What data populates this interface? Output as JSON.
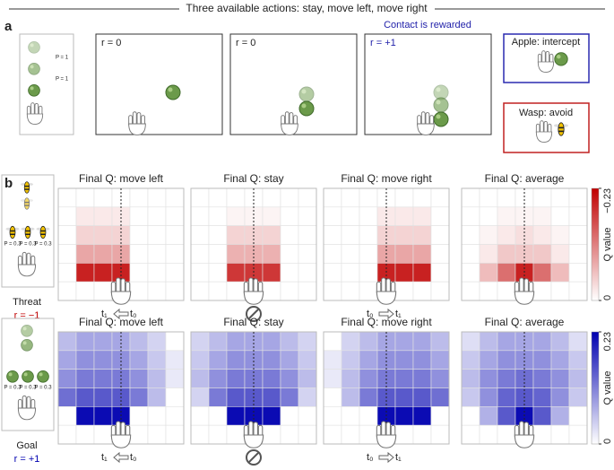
{
  "panel_a": {
    "label": "a",
    "title": "Three available actions: stay, move left, move right",
    "legend_probs": [
      "P = 1",
      "P = 1"
    ],
    "frames": [
      {
        "reward": "r = 0"
      },
      {
        "reward": "r = 0"
      },
      {
        "reward": "r = +1"
      }
    ],
    "note": "Contact is rewarded",
    "boxes": [
      "Apple: intercept",
      "Wasp: avoid"
    ]
  },
  "panel_b": {
    "label": "b",
    "titles": [
      "Final Q: move left",
      "Final Q: stay",
      "Final Q: move right",
      "Final Q: average"
    ],
    "colorbar_label": "Q value",
    "t_before": "t₀",
    "t_after": "t₁",
    "rows": [
      {
        "name": "Threat",
        "reward": "r = −1",
        "probs": [
          "P = 0.3",
          "P = 0.3",
          "P = 0.3"
        ],
        "color": "#c00000",
        "clim": [
          -0.23,
          0
        ],
        "cticks": [
          {
            "value": -0.23,
            "label": "−0.23"
          },
          0
        ],
        "heatmaps": [
          [
            [
              0,
              0,
              0,
              0,
              0,
              0,
              0
            ],
            [
              0,
              -0.02,
              -0.02,
              -0.02,
              0,
              0,
              0
            ],
            [
              0,
              -0.04,
              -0.04,
              -0.04,
              0,
              0,
              0
            ],
            [
              0,
              -0.08,
              -0.08,
              -0.08,
              0,
              0,
              0
            ],
            [
              0,
              -0.2,
              -0.2,
              -0.2,
              0,
              0,
              0
            ],
            [
              0,
              0,
              0,
              0,
              0,
              0,
              0
            ]
          ],
          [
            [
              0,
              0,
              0,
              0,
              0,
              0,
              0
            ],
            [
              0,
              0,
              -0.01,
              -0.01,
              -0.01,
              0,
              0
            ],
            [
              0,
              0,
              -0.04,
              -0.04,
              -0.04,
              0,
              0
            ],
            [
              0,
              0,
              -0.07,
              -0.07,
              -0.07,
              0,
              0
            ],
            [
              0,
              0,
              -0.18,
              -0.18,
              -0.18,
              0,
              0
            ],
            [
              0,
              0,
              0,
              0,
              0,
              0,
              0
            ]
          ],
          [
            [
              0,
              0,
              0,
              0,
              0,
              0,
              0
            ],
            [
              0,
              0,
              0,
              -0.02,
              -0.02,
              -0.02,
              0
            ],
            [
              0,
              0,
              0,
              -0.04,
              -0.04,
              -0.04,
              0
            ],
            [
              0,
              0,
              0,
              -0.08,
              -0.08,
              -0.08,
              0
            ],
            [
              0,
              0,
              0,
              -0.2,
              -0.2,
              -0.2,
              0
            ],
            [
              0,
              0,
              0,
              0,
              0,
              0,
              0
            ]
          ],
          [
            [
              0,
              0,
              0,
              0,
              0,
              0,
              0
            ],
            [
              0,
              0,
              -0.01,
              -0.01,
              -0.01,
              0,
              0
            ],
            [
              0,
              -0.01,
              -0.02,
              -0.03,
              -0.02,
              -0.01,
              0
            ],
            [
              0,
              -0.02,
              -0.05,
              -0.05,
              -0.05,
              -0.02,
              0
            ],
            [
              0,
              -0.06,
              -0.13,
              -0.2,
              -0.13,
              -0.06,
              0
            ],
            [
              0,
              0,
              0,
              0,
              0,
              0,
              0
            ]
          ]
        ]
      },
      {
        "name": "Goal",
        "reward": "r = +1",
        "probs": [
          "P = 0.3",
          "P = 0.3",
          "P = 0.3"
        ],
        "color": "#0000b0",
        "clim": [
          0,
          0.23
        ],
        "cticks": [
          0.23,
          0
        ],
        "heatmaps": [
          [
            [
              0.06,
              0.08,
              0.08,
              0.08,
              0.06,
              0.04,
              0
            ],
            [
              0.08,
              0.1,
              0.1,
              0.1,
              0.08,
              0.05,
              0.02
            ],
            [
              0.1,
              0.12,
              0.12,
              0.12,
              0.1,
              0.06,
              0.02
            ],
            [
              0.13,
              0.15,
              0.15,
              0.15,
              0.12,
              0.06,
              0
            ],
            [
              0,
              0.22,
              0.22,
              0.22,
              0,
              0,
              0
            ],
            [
              0,
              0,
              0,
              0,
              0,
              0,
              0
            ]
          ],
          [
            [
              0.04,
              0.06,
              0.08,
              0.08,
              0.08,
              0.06,
              0.04
            ],
            [
              0.05,
              0.08,
              0.1,
              0.1,
              0.1,
              0.08,
              0.05
            ],
            [
              0.06,
              0.1,
              0.12,
              0.12,
              0.12,
              0.1,
              0.06
            ],
            [
              0.04,
              0.12,
              0.15,
              0.15,
              0.15,
              0.12,
              0.04
            ],
            [
              0,
              0,
              0.22,
              0.22,
              0.22,
              0,
              0
            ],
            [
              0,
              0,
              0,
              0,
              0,
              0,
              0
            ]
          ],
          [
            [
              0,
              0.04,
              0.06,
              0.08,
              0.08,
              0.08,
              0.06
            ],
            [
              0.02,
              0.05,
              0.08,
              0.1,
              0.1,
              0.1,
              0.08
            ],
            [
              0.02,
              0.06,
              0.1,
              0.12,
              0.12,
              0.12,
              0.1
            ],
            [
              0,
              0.06,
              0.12,
              0.15,
              0.15,
              0.15,
              0.13
            ],
            [
              0,
              0,
              0,
              0.22,
              0.22,
              0.22,
              0
            ],
            [
              0,
              0,
              0,
              0,
              0,
              0,
              0
            ]
          ],
          [
            [
              0.03,
              0.06,
              0.08,
              0.08,
              0.08,
              0.06,
              0.03
            ],
            [
              0.05,
              0.08,
              0.1,
              0.1,
              0.1,
              0.08,
              0.05
            ],
            [
              0.06,
              0.1,
              0.12,
              0.13,
              0.12,
              0.1,
              0.06
            ],
            [
              0.05,
              0.1,
              0.14,
              0.15,
              0.14,
              0.1,
              0.05
            ],
            [
              0,
              0.07,
              0.15,
              0.22,
              0.15,
              0.07,
              0
            ],
            [
              0,
              0,
              0,
              0,
              0,
              0,
              0
            ]
          ]
        ]
      }
    ]
  }
}
